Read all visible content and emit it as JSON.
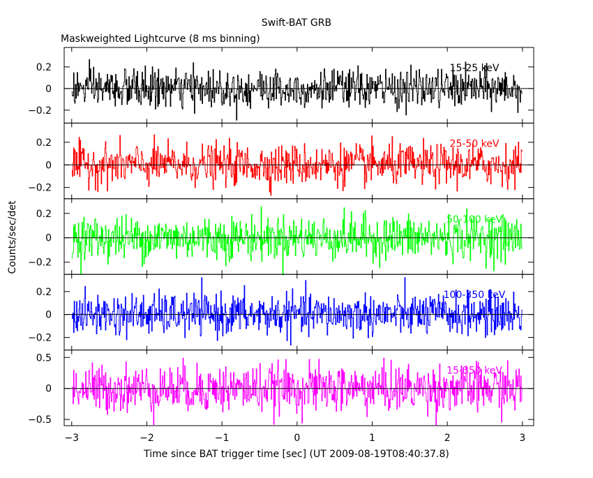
{
  "title": "Swift-BAT GRB",
  "subtitle": "Maskweighted Lightcurve (8 ms binning)",
  "xlabel": "Time since BAT trigger time [sec] (UT 2009-08-19T08:40:37.8)",
  "ylabel": "Counts/sec/det",
  "chart_data": {
    "type": "line",
    "title": "Swift-BAT GRB",
    "subtitle": "Maskweighted Lightcurve (8 ms binning)",
    "xlabel": "Time since BAT trigger time [sec] (UT 2009-08-19T08:40:37.8)",
    "ylabel": "Counts/sec/det",
    "xlim": [
      -3.1,
      3.15
    ],
    "xticks": [
      -3,
      -2,
      -1,
      0,
      1,
      2,
      3
    ],
    "x_range": [
      -3.0,
      3.0
    ],
    "bin_width": 0.008,
    "grid": false,
    "panels": [
      {
        "name": "15-25 keV",
        "color": "#000000",
        "ylim": [
          -0.32,
          0.38
        ],
        "yticks": [
          -0.2,
          0,
          0.2
        ],
        "ytick_labels": [
          "−0.2",
          "0",
          "0.2"
        ],
        "noise_std": 0.09,
        "peak": 0.37
      },
      {
        "name": "25-50 keV",
        "color": "#ff0000",
        "ylim": [
          -0.3,
          0.37
        ],
        "yticks": [
          -0.2,
          0,
          0.2
        ],
        "ytick_labels": [
          "−0.2",
          "0",
          "0.2"
        ],
        "noise_std": 0.09,
        "peak": 0.31
      },
      {
        "name": "50-100 keV",
        "color": "#00ff00",
        "ylim": [
          -0.3,
          0.32
        ],
        "yticks": [
          -0.2,
          0,
          0.2
        ],
        "ytick_labels": [
          "−0.2",
          "0",
          "0.2"
        ],
        "noise_std": 0.09,
        "peak": 0.32
      },
      {
        "name": "100-350 keV",
        "color": "#0000ff",
        "ylim": [
          -0.31,
          0.35
        ],
        "yticks": [
          -0.2,
          0,
          0.2
        ],
        "ytick_labels": [
          "−0.2",
          "0",
          "0.2"
        ],
        "noise_std": 0.09,
        "peak": 0.35
      },
      {
        "name": "15-350 keV",
        "color": "#ff00ff",
        "ylim": [
          -0.6,
          0.62
        ],
        "yticks": [
          -0.5,
          0,
          0.5
        ],
        "ytick_labels": [
          "−0.5",
          "0",
          "0.5"
        ],
        "noise_std": 0.19,
        "peak": 0.62
      }
    ]
  }
}
